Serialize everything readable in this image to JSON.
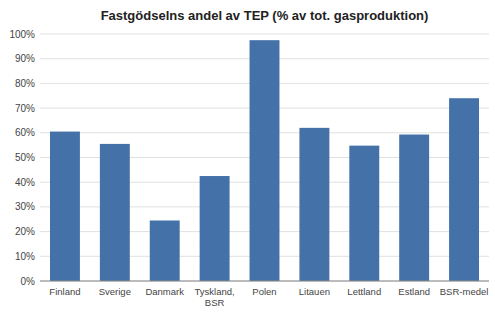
{
  "chart_data": {
    "type": "bar",
    "title": "Fastgödselns andel av TEP (% av tot. gasproduktion)",
    "categories": [
      "Finland",
      "Sverige",
      "Danmark",
      "Tyskland,\nBSR",
      "Polen",
      "Litauen",
      "Lettland",
      "Estland",
      "BSR-medel"
    ],
    "values": [
      0.605,
      0.555,
      0.245,
      0.425,
      0.975,
      0.62,
      0.548,
      0.593,
      0.74
    ],
    "color": "#4472A8",
    "ylim": [
      0,
      1.0
    ],
    "yticks": [
      {
        "value": 0,
        "label": "0%"
      },
      {
        "value": 0.1,
        "label": "10%"
      },
      {
        "value": 0.2,
        "label": "20%"
      },
      {
        "value": 0.3,
        "label": "30%"
      },
      {
        "value": 0.4,
        "label": "40%"
      },
      {
        "value": 0.5,
        "label": "50%"
      },
      {
        "value": 0.6,
        "label": "60%"
      },
      {
        "value": 0.7,
        "label": "70%"
      },
      {
        "value": 0.8,
        "label": "80%"
      },
      {
        "value": 0.9,
        "label": "90%"
      },
      {
        "value": 1.0,
        "label": "100%"
      }
    ],
    "grid": true
  }
}
